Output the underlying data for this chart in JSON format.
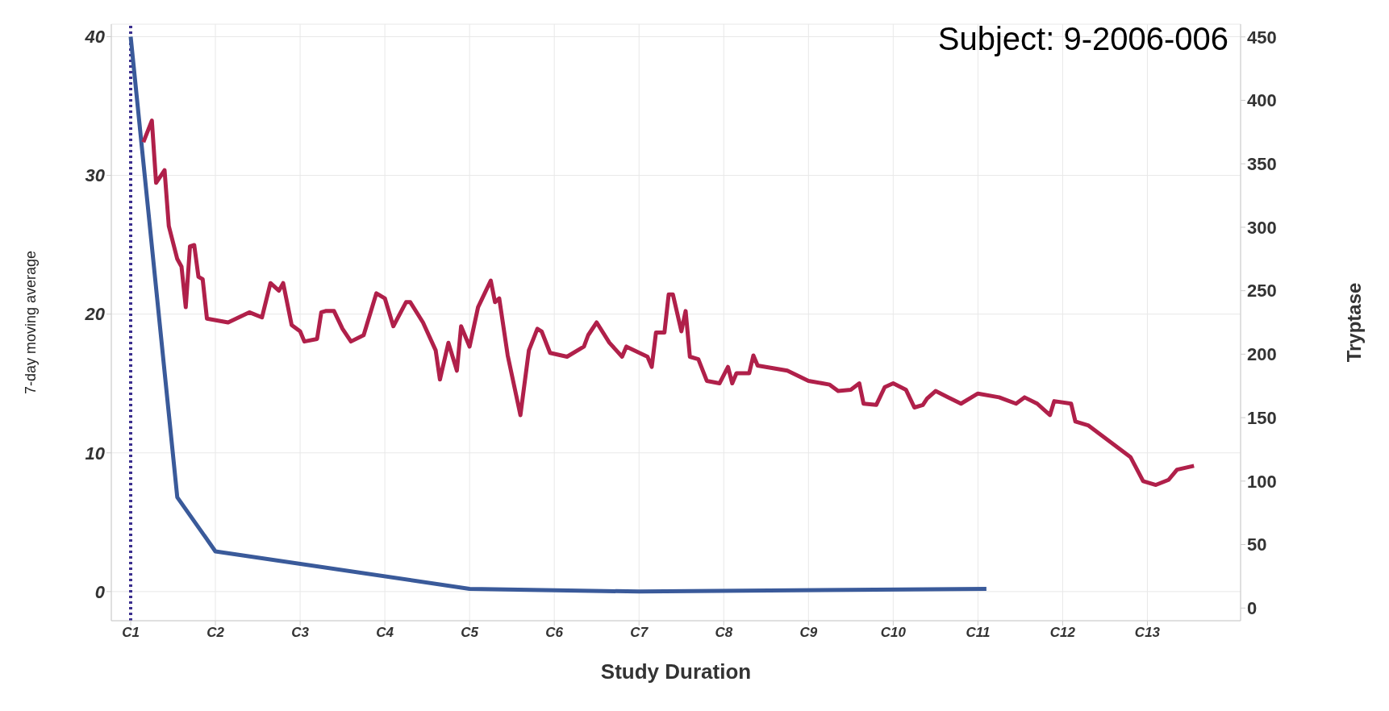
{
  "chart_data": {
    "type": "line",
    "xlabel": "Study Duration",
    "ylabel": "7-day moving average",
    "y2label": "Tryptase",
    "annotations": [
      "Subject: 9-2006-006"
    ],
    "categories": [
      "C1",
      null,
      null,
      null,
      null,
      null,
      null,
      null,
      null,
      null,
      null,
      null,
      null,
      null,
      null,
      null,
      null,
      null,
      null,
      null,
      "C2",
      null,
      null,
      null,
      null,
      null,
      null,
      null,
      null,
      null,
      null,
      null,
      null,
      null,
      null,
      null,
      null,
      null,
      null,
      null,
      "C3",
      null,
      null,
      null,
      null,
      null,
      null,
      null,
      null,
      null,
      null,
      null,
      null,
      null,
      null,
      null,
      null,
      null,
      null,
      null,
      "C4",
      null,
      null,
      null,
      null,
      null,
      null,
      null,
      null,
      null,
      null,
      null,
      null,
      null,
      null,
      null,
      null,
      null,
      null,
      null,
      "C5",
      null,
      null,
      null,
      null,
      null,
      null,
      null,
      null,
      null,
      null,
      null,
      null,
      null,
      null,
      null,
      null,
      null,
      null,
      null,
      "C6",
      null,
      null,
      null,
      null,
      null,
      null,
      null,
      null,
      null,
      null,
      null,
      null,
      null,
      null,
      null,
      null,
      null,
      null,
      null,
      "C7",
      null,
      null,
      null,
      null,
      null,
      null,
      null,
      null,
      null,
      null,
      null,
      null,
      null,
      null,
      null,
      null,
      null,
      null,
      null,
      "C8",
      null,
      null,
      null,
      null,
      null,
      null,
      null,
      null,
      null,
      null,
      null,
      null,
      null,
      null,
      null,
      null,
      null,
      null,
      null,
      "C9",
      null,
      null,
      null,
      null,
      null,
      null,
      null,
      null,
      null,
      null,
      null,
      null,
      null,
      null,
      null,
      null,
      null,
      null,
      null,
      "C10",
      null,
      null,
      null,
      null,
      null,
      null,
      null,
      null,
      null,
      null,
      null,
      null,
      null,
      null,
      null,
      null,
      null,
      null,
      null,
      "C11",
      null,
      null,
      null,
      null,
      null,
      null,
      null,
      null,
      null,
      null,
      null,
      null,
      null,
      null,
      null,
      null,
      null,
      null,
      null,
      "C12",
      null,
      null,
      null,
      null,
      null,
      null,
      null,
      null,
      null,
      null,
      null,
      null,
      null,
      null,
      null,
      null,
      null,
      null,
      null,
      "C13",
      null,
      null,
      null,
      null,
      null,
      null,
      null,
      null,
      null,
      null,
      null,
      null,
      null,
      null,
      null,
      null,
      null,
      null,
      null,
      null,
      null,
      null
    ],
    "ylim": [
      -2.1,
      40.9
    ],
    "yticks": [
      0,
      10,
      20,
      30,
      40
    ],
    "y2lim": [
      -10,
      460
    ],
    "y2ticks": [
      0,
      50,
      100,
      150,
      200,
      250,
      300,
      350,
      400,
      450
    ],
    "grid": true,
    "legend": false,
    "marker": "none",
    "line_style": "solid",
    "ref_lines": [
      {
        "axis": "x",
        "value": "C1",
        "color": "#3b2f8f",
        "line_style": "dotted"
      }
    ],
    "series": [
      {
        "color": "#3a5a9a",
        "values": [
          40,
          null,
          null,
          null,
          null,
          null,
          null,
          null,
          null,
          null,
          null,
          6.8,
          null,
          null,
          null,
          null,
          null,
          null,
          null,
          null,
          2.9,
          null,
          null,
          null,
          null,
          null,
          null,
          null,
          null,
          null,
          null,
          null,
          null,
          null,
          null,
          null,
          null,
          null,
          null,
          null,
          null,
          null,
          null,
          null,
          null,
          null,
          null,
          null,
          null,
          null,
          null,
          null,
          null,
          null,
          null,
          null,
          null,
          null,
          null,
          null,
          null,
          null,
          null,
          null,
          null,
          null,
          null,
          null,
          null,
          null,
          null,
          null,
          null,
          null,
          null,
          null,
          null,
          null,
          null,
          null,
          0.2,
          null,
          null,
          null,
          null,
          null,
          null,
          null,
          null,
          null,
          null,
          null,
          null,
          null,
          null,
          null,
          null,
          null,
          null,
          null,
          null,
          null,
          null,
          null,
          null,
          null,
          null,
          null,
          null,
          null,
          null,
          null,
          null,
          null,
          null,
          null,
          null,
          null,
          null,
          null,
          0,
          null,
          null,
          null,
          null,
          null,
          null,
          null,
          null,
          null,
          null,
          null,
          null,
          null,
          null,
          null,
          null,
          null,
          null,
          null,
          null,
          null,
          null,
          null,
          null,
          null,
          null,
          null,
          null,
          null,
          null,
          null,
          null,
          null,
          null,
          null,
          null,
          null,
          null,
          null,
          null,
          null,
          null,
          null,
          null,
          null,
          null,
          null,
          null,
          null,
          null,
          null,
          null,
          null,
          null,
          null,
          null,
          null,
          null,
          null,
          null,
          null,
          null,
          null,
          null,
          null,
          null,
          null,
          null,
          null,
          null,
          null,
          null,
          null,
          null,
          null,
          null,
          null,
          null,
          null,
          null,
          null,
          0.2,
          null,
          null,
          null,
          null,
          null,
          null,
          null,
          null,
          null,
          null,
          null,
          null,
          null,
          null,
          null,
          null,
          null,
          null,
          null,
          null,
          null,
          null,
          null,
          null,
          null,
          null,
          null,
          null,
          null,
          null,
          null,
          null,
          null,
          null,
          null,
          null,
          null,
          null,
          null,
          null,
          null,
          null,
          null,
          null,
          null,
          null,
          null,
          null,
          null,
          null,
          null,
          null,
          null,
          null,
          null,
          null,
          null,
          null,
          null,
          null
        ]
      },
      {
        "color": "#b0204a",
        "axis": "y2",
        "values": [
          null,
          null,
          null,
          367,
          null,
          384,
          335,
          null,
          345,
          301,
          null,
          275,
          269,
          237,
          285,
          286,
          261,
          259,
          228,
          null,
          null,
          null,
          null,
          225,
          null,
          null,
          null,
          null,
          233,
          null,
          null,
          229,
          null,
          256,
          null,
          250,
          256,
          null,
          223,
          null,
          218,
          210,
          null,
          null,
          212,
          233,
          234,
          null,
          234,
          null,
          220,
          null,
          210,
          null,
          null,
          215,
          null,
          null,
          248,
          null,
          244,
          null,
          222,
          null,
          null,
          241,
          241,
          null,
          null,
          225,
          null,
          null,
          203,
          180,
          null,
          209,
          null,
          187,
          222,
          null,
          206,
          null,
          237,
          244,
          null,
          258,
          241,
          244,
          null,
          199,
          null,
          null,
          152,
          null,
          203,
          null,
          220,
          218,
          null,
          201,
          null,
          null,
          null,
          198,
          null,
          null,
          null,
          206,
          215,
          null,
          225,
          null,
          null,
          209,
          null,
          null,
          198,
          206,
          null,
          null,
          null,
          null,
          198,
          190,
          217,
          null,
          217,
          247,
          247,
          null,
          218,
          234,
          198,
          null,
          196,
          null,
          179,
          null,
          null,
          177,
          null,
          190,
          177,
          185,
          null,
          null,
          185,
          199,
          191,
          null,
          null,
          null,
          null,
          null,
          null,
          187,
          null,
          null,
          null,
          null,
          179,
          null,
          null,
          null,
          null,
          176,
          null,
          171,
          null,
          null,
          172,
          null,
          177,
          161,
          null,
          null,
          160,
          null,
          174,
          null,
          177,
          null,
          null,
          172,
          null,
          158,
          null,
          160,
          165,
          null,
          171,
          null,
          null,
          166,
          null,
          null,
          161,
          null,
          null,
          null,
          169,
          null,
          null,
          null,
          null,
          166,
          null,
          null,
          null,
          161,
          null,
          166,
          null,
          null,
          161,
          null,
          null,
          152,
          163,
          null,
          null,
          null,
          161,
          147,
          null,
          null,
          144,
          null,
          null,
          null,
          null,
          null,
          null,
          null,
          null,
          null,
          119,
          null,
          null,
          100,
          null,
          null,
          97,
          null,
          null,
          101,
          null,
          109,
          null,
          null,
          null,
          112,
          null,
          null,
          null,
          null,
          null,
          null,
          null,
          null,
          null,
          null,
          null
        ]
      }
    ]
  }
}
